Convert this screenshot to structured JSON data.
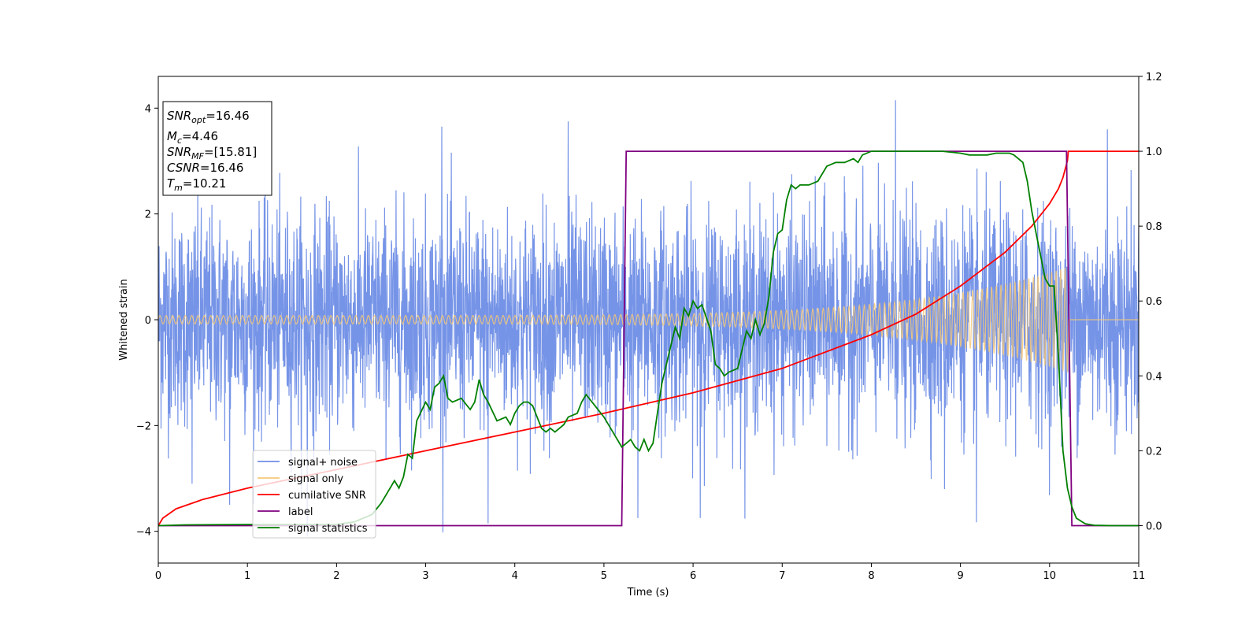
{
  "chart_data": {
    "type": "line",
    "xlabel": "Time (s)",
    "ylabel": "Whitened strain",
    "xlim": [
      0,
      11
    ],
    "ylim": [
      -4.6,
      4.6
    ],
    "y2lim": [
      -0.1,
      1.2
    ],
    "x_ticks": [
      0,
      1,
      2,
      3,
      4,
      5,
      6,
      7,
      8,
      9,
      10,
      11
    ],
    "y_ticks": [
      -4,
      -2,
      0,
      2,
      4
    ],
    "y2_ticks": [
      0.0,
      0.2,
      0.4,
      0.6,
      0.8,
      1.0,
      1.2
    ],
    "x_tick_labels": [
      "0",
      "1",
      "2",
      "3",
      "4",
      "5",
      "6",
      "7",
      "8",
      "9",
      "10",
      "11"
    ],
    "y_tick_labels": [
      "−4",
      "−2",
      "0",
      "2",
      "4"
    ],
    "y2_tick_labels": [
      "0.0",
      "0.2",
      "0.4",
      "0.6",
      "0.8",
      "1.0",
      "1.2"
    ],
    "grid": false,
    "legend_position": "lower-left",
    "annotation_lines": [
      "=16.46",
      "=4.46",
      "=[15.81]",
      "=16.46",
      "=10.21"
    ],
    "annotation_symbols": [
      {
        "main": "SNR",
        "sub": "opt"
      },
      {
        "main": "M",
        "sub": "c"
      },
      {
        "main": "SNR",
        "sub": "MF"
      },
      {
        "main": "CSNR",
        "sub": ""
      },
      {
        "main": "T",
        "sub": "m"
      }
    ],
    "series": [
      {
        "name": "signal+ noise",
        "color": "#6f8ee6",
        "axis": "left",
        "kind": "noise",
        "sigma": 1.0,
        "notable_spikes": [
          {
            "x": 1.67,
            "y": -4.1
          },
          {
            "x": 3.7,
            "y": -3.85
          },
          {
            "x": 5.38,
            "y": -3.75
          },
          {
            "x": 6.08,
            "y": -3.75
          },
          {
            "x": 9.18,
            "y": -3.83
          },
          {
            "x": 8.27,
            "y": 4.15
          },
          {
            "x": 4.6,
            "y": 3.75
          },
          {
            "x": 3.18,
            "y": 3.65
          },
          {
            "x": 10.65,
            "y": 3.6
          },
          {
            "x": 0.8,
            "y": -3.5
          },
          {
            "x": 0.38,
            "y": -3.1
          },
          {
            "x": 8.82,
            "y": -3.2
          }
        ]
      },
      {
        "name": "signal only",
        "color": "#f5c878",
        "axis": "left",
        "kind": "chirp",
        "amplitude_start": 0.08,
        "merger_time": 10.21,
        "amplitude_peak": 1.0
      },
      {
        "name": "cumilative SNR",
        "color": "#ff0000",
        "axis": "right",
        "x": [
          0,
          0.05,
          0.2,
          0.5,
          1,
          1.5,
          2,
          3,
          4,
          5,
          6,
          7,
          8,
          8.5,
          9,
          9.5,
          9.8,
          10.0,
          10.1,
          10.15,
          10.2,
          10.21,
          11
        ],
        "y": [
          0.0,
          0.02,
          0.045,
          0.07,
          0.1,
          0.125,
          0.15,
          0.2,
          0.25,
          0.3,
          0.355,
          0.42,
          0.51,
          0.565,
          0.64,
          0.73,
          0.8,
          0.86,
          0.9,
          0.93,
          0.975,
          1.0,
          1.0
        ]
      },
      {
        "name": "label",
        "color": "#800080",
        "axis": "right",
        "x": [
          0,
          5.2,
          5.25,
          10.19,
          10.25,
          11
        ],
        "y": [
          0,
          0,
          1,
          1,
          0,
          0
        ]
      },
      {
        "name": "signal statistics",
        "color": "#008000",
        "axis": "right",
        "x": [
          0,
          0.3,
          1,
          2,
          2.2,
          2.4,
          2.5,
          2.6,
          2.65,
          2.7,
          2.75,
          2.8,
          2.85,
          2.9,
          3.0,
          3.05,
          3.1,
          3.15,
          3.2,
          3.25,
          3.3,
          3.4,
          3.5,
          3.55,
          3.6,
          3.65,
          3.7,
          3.8,
          3.9,
          3.95,
          4.0,
          4.05,
          4.1,
          4.15,
          4.2,
          4.3,
          4.35,
          4.4,
          4.45,
          4.5,
          4.55,
          4.6,
          4.7,
          4.75,
          4.8,
          4.9,
          5.0,
          5.1,
          5.2,
          5.25,
          5.3,
          5.35,
          5.4,
          5.45,
          5.5,
          5.55,
          5.6,
          5.65,
          5.7,
          5.8,
          5.85,
          5.9,
          5.95,
          6.0,
          6.05,
          6.1,
          6.2,
          6.25,
          6.3,
          6.35,
          6.4,
          6.5,
          6.6,
          6.65,
          6.7,
          6.75,
          6.8,
          6.85,
          6.9,
          6.95,
          7.0,
          7.05,
          7.1,
          7.15,
          7.2,
          7.3,
          7.4,
          7.5,
          7.6,
          7.7,
          7.8,
          7.85,
          7.9,
          8.0,
          8.1,
          8.2,
          8.3,
          8.5,
          8.8,
          9.0,
          9.1,
          9.2,
          9.3,
          9.4,
          9.5,
          9.55,
          9.6,
          9.7,
          9.75,
          9.8,
          9.85,
          9.9,
          9.95,
          10.0,
          10.05,
          10.1,
          10.15,
          10.2,
          10.25,
          10.3,
          10.4,
          10.5,
          10.7,
          11
        ],
        "y": [
          0.0,
          0.002,
          0.003,
          0.003,
          0.01,
          0.03,
          0.06,
          0.1,
          0.12,
          0.1,
          0.13,
          0.19,
          0.18,
          0.28,
          0.33,
          0.31,
          0.37,
          0.38,
          0.4,
          0.34,
          0.33,
          0.34,
          0.31,
          0.33,
          0.39,
          0.35,
          0.33,
          0.28,
          0.29,
          0.27,
          0.3,
          0.32,
          0.33,
          0.33,
          0.32,
          0.26,
          0.25,
          0.26,
          0.25,
          0.26,
          0.27,
          0.29,
          0.3,
          0.33,
          0.35,
          0.32,
          0.29,
          0.25,
          0.21,
          0.22,
          0.23,
          0.21,
          0.2,
          0.23,
          0.2,
          0.22,
          0.3,
          0.38,
          0.43,
          0.53,
          0.5,
          0.58,
          0.56,
          0.6,
          0.58,
          0.59,
          0.52,
          0.43,
          0.42,
          0.4,
          0.41,
          0.42,
          0.52,
          0.5,
          0.55,
          0.51,
          0.54,
          0.61,
          0.73,
          0.78,
          0.79,
          0.87,
          0.91,
          0.9,
          0.91,
          0.91,
          0.92,
          0.96,
          0.97,
          0.97,
          0.98,
          0.97,
          0.99,
          1.0,
          1.0,
          1.0,
          1.0,
          1.0,
          1.0,
          0.995,
          0.99,
          0.99,
          0.99,
          0.995,
          0.995,
          0.995,
          0.99,
          0.97,
          0.92,
          0.84,
          0.78,
          0.72,
          0.66,
          0.64,
          0.64,
          0.45,
          0.2,
          0.1,
          0.05,
          0.02,
          0.005,
          0.001,
          0.0,
          0.0
        ]
      }
    ]
  }
}
